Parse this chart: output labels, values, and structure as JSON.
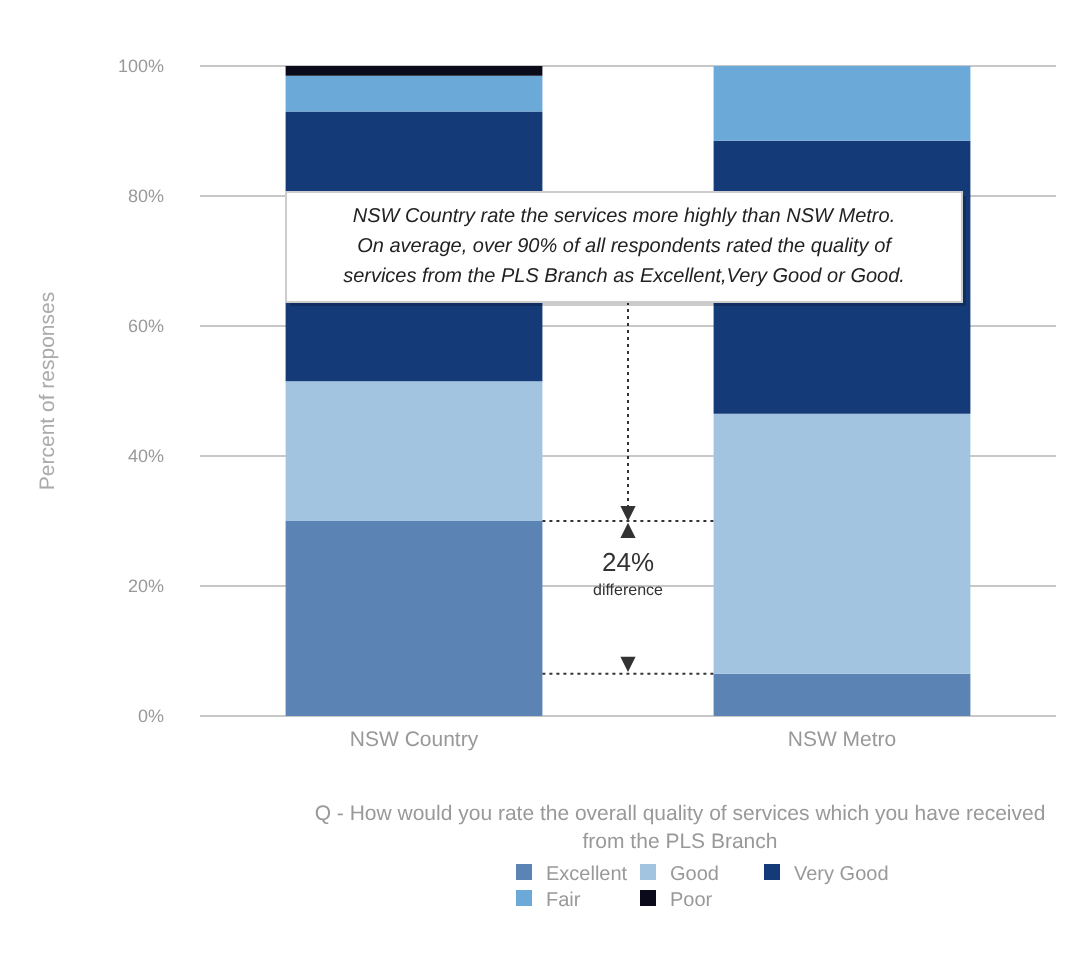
{
  "chart_data": {
    "type": "bar",
    "stacked": true,
    "ylabel": "Percent of responses",
    "xlabel": "Q - How would you rate the overall quality of services which you have received from the PLS Branch",
    "categories": [
      "NSW Country",
      "NSW Metro"
    ],
    "series": [
      {
        "name": "Excellent",
        "color": "#5b84b5",
        "values": [
          30,
          6.5
        ]
      },
      {
        "name": "Good",
        "color": "#a3c4e0",
        "values": [
          21.5,
          40
        ]
      },
      {
        "name": "Very Good",
        "color": "#143a78",
        "values": [
          41.5,
          42
        ]
      },
      {
        "name": "Fair",
        "color": "#6aa9d8",
        "values": [
          5.5,
          11.5
        ]
      },
      {
        "name": "Poor",
        "color": "#0a0a1a",
        "values": [
          1.5,
          0
        ]
      }
    ],
    "ylim": [
      0,
      100
    ],
    "yticks": [
      {
        "value": 0,
        "label": "0%"
      },
      {
        "value": 20,
        "label": "20%"
      },
      {
        "value": 40,
        "label": "40%"
      },
      {
        "value": 60,
        "label": "60%"
      },
      {
        "value": 80,
        "label": "80%"
      },
      {
        "value": 100,
        "label": "100%"
      }
    ],
    "grid": "y",
    "legend": "bottom",
    "ref_lines": [
      {
        "axis": "y",
        "value": 30,
        "color": "#333333",
        "line_style": "dotted"
      },
      {
        "axis": "y",
        "value": 6.5,
        "color": "#333333",
        "line_style": "dotted"
      }
    ],
    "annotations": [
      {
        "text": "NSW Country rate the services more highly than NSW Metro. On average, over 90% of all respondents rated the quality of services from the PLS Branch as Excellent,Very Good or Good.",
        "y": 30
      },
      "24%",
      "difference"
    ]
  }
}
